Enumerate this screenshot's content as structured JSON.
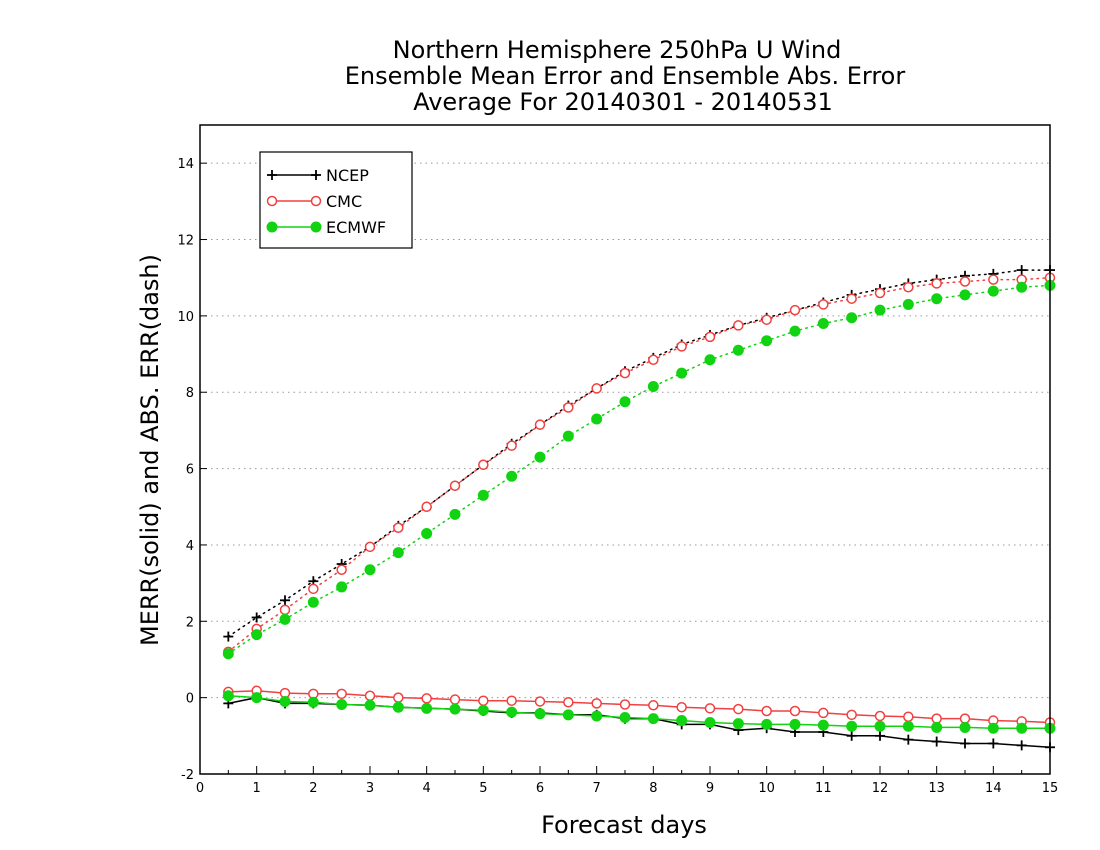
{
  "chart_data": {
    "type": "line",
    "title_lines": [
      "Northern Hemisphere 250hPa U Wind",
      "Ensemble Mean Error and Ensemble Abs. Error",
      "Average For 20140301 - 20140531"
    ],
    "xlabel": "Forecast days",
    "ylabel": "MERR(solid) and ABS. ERR(dash)",
    "xlim": [
      0,
      15
    ],
    "ylim": [
      -2,
      15
    ],
    "xticks": [
      "0",
      "1",
      "2",
      "3",
      "4",
      "5",
      "6",
      "7",
      "8",
      "9",
      "10",
      "11",
      "12",
      "13",
      "14",
      "15"
    ],
    "yticks": [
      "-2",
      "0",
      "2",
      "4",
      "6",
      "8",
      "10",
      "12",
      "14"
    ],
    "grid": "horizontal dotted",
    "legend_position": "top-left",
    "x": [
      0.5,
      1,
      1.5,
      2,
      2.5,
      3,
      3.5,
      4,
      4.5,
      5,
      5.5,
      6,
      6.5,
      7,
      7.5,
      8,
      8.5,
      9,
      9.5,
      10,
      10.5,
      11,
      11.5,
      12,
      12.5,
      13,
      13.5,
      14,
      14.5,
      15
    ],
    "series": [
      {
        "name": "NCEP",
        "color": "#000000",
        "marker": "plus",
        "abs_error": [
          1.6,
          2.1,
          2.55,
          3.05,
          3.5,
          3.95,
          4.5,
          5.0,
          5.55,
          6.1,
          6.65,
          7.15,
          7.65,
          8.1,
          8.55,
          8.9,
          9.25,
          9.5,
          9.75,
          9.95,
          10.15,
          10.35,
          10.55,
          10.7,
          10.85,
          10.95,
          11.05,
          11.1,
          11.2,
          11.2
        ],
        "mean_error": [
          -0.15,
          0.0,
          -0.15,
          -0.15,
          -0.18,
          -0.2,
          -0.25,
          -0.28,
          -0.3,
          -0.35,
          -0.4,
          -0.4,
          -0.45,
          -0.45,
          -0.55,
          -0.55,
          -0.7,
          -0.7,
          -0.85,
          -0.8,
          -0.9,
          -0.9,
          -1.0,
          -1.0,
          -1.1,
          -1.15,
          -1.2,
          -1.2,
          -1.25,
          -1.3
        ]
      },
      {
        "name": "CMC",
        "color": "#f04040",
        "marker": "open-circle",
        "abs_error": [
          1.2,
          1.8,
          2.3,
          2.85,
          3.35,
          3.95,
          4.45,
          5.0,
          5.55,
          6.1,
          6.6,
          7.15,
          7.6,
          8.1,
          8.5,
          8.85,
          9.2,
          9.45,
          9.75,
          9.9,
          10.15,
          10.3,
          10.45,
          10.6,
          10.75,
          10.85,
          10.9,
          10.95,
          10.95,
          11.0
        ],
        "mean_error": [
          0.15,
          0.18,
          0.12,
          0.1,
          0.1,
          0.05,
          0.0,
          -0.02,
          -0.05,
          -0.08,
          -0.08,
          -0.1,
          -0.12,
          -0.15,
          -0.18,
          -0.2,
          -0.25,
          -0.28,
          -0.3,
          -0.35,
          -0.35,
          -0.4,
          -0.45,
          -0.48,
          -0.5,
          -0.55,
          -0.55,
          -0.6,
          -0.62,
          -0.65
        ]
      },
      {
        "name": "ECMWF",
        "color": "#11d311",
        "marker": "filled-circle",
        "abs_error": [
          1.15,
          1.65,
          2.05,
          2.5,
          2.9,
          3.35,
          3.8,
          4.3,
          4.8,
          5.3,
          5.8,
          6.3,
          6.85,
          7.3,
          7.75,
          8.15,
          8.5,
          8.85,
          9.1,
          9.35,
          9.6,
          9.8,
          9.95,
          10.15,
          10.3,
          10.45,
          10.55,
          10.65,
          10.75,
          10.8
        ],
        "mean_error": [
          0.05,
          0.0,
          -0.1,
          -0.12,
          -0.18,
          -0.2,
          -0.25,
          -0.28,
          -0.3,
          -0.33,
          -0.38,
          -0.42,
          -0.45,
          -0.48,
          -0.52,
          -0.55,
          -0.6,
          -0.65,
          -0.68,
          -0.7,
          -0.7,
          -0.72,
          -0.75,
          -0.75,
          -0.75,
          -0.78,
          -0.78,
          -0.8,
          -0.8,
          -0.8
        ]
      }
    ]
  }
}
